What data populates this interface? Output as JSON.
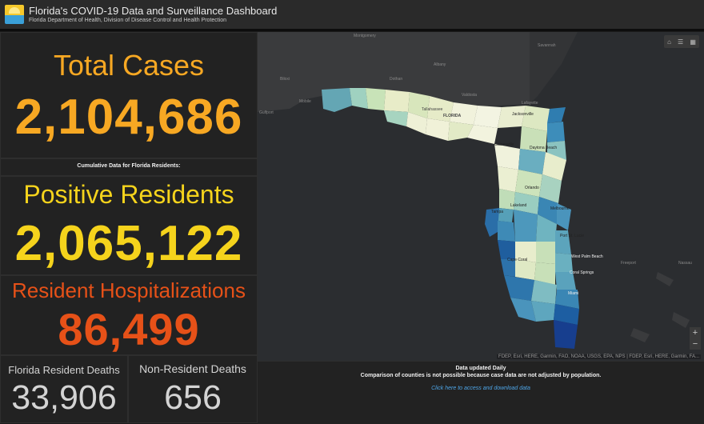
{
  "header": {
    "title": "Florida's COVID-19 Data and Surveillance Dashboard",
    "subtitle": "Florida Department of Health, Division of Disease Control and Health Protection"
  },
  "total_cases": {
    "label": "Total Cases",
    "value": "2,104,686"
  },
  "cumulative_note": "Cumulative Data for Florida Residents:",
  "positive_residents": {
    "label": "Positive Residents",
    "value": "2,065,122"
  },
  "hospitalizations": {
    "label": "Resident Hospitalizations",
    "value": "86,499"
  },
  "fl_deaths": {
    "label": "Florida Resident Deaths",
    "value": "33,906"
  },
  "nonres_deaths": {
    "label": "Non-Resident Deaths",
    "value": "656"
  },
  "map": {
    "places": [
      "Montgomery",
      "Savannah",
      "Albany",
      "Dothan",
      "Valdosta",
      "Mobile",
      "Gulfport",
      "Tallahassee",
      "FLORIDA",
      "Jacksonville",
      "Gainesville",
      "Daytona Beach",
      "Orlando",
      "Tampa",
      "Lakeland",
      "Melbourne",
      "Port St. Lucie",
      "West Palm Beach",
      "Cape Coral",
      "Miami",
      "Freeport",
      "Nassau",
      "Coral Springs",
      "Lafayette",
      "Biloxi"
    ],
    "attribution": "FDEP, Esri, HERE, Garmin, FAO, NOAA, USGS, EPA, NPS | FDEP, Esri, HERE, Garmin, FA...",
    "zoom_in": "+",
    "zoom_out": "−",
    "tools": [
      "⌂",
      "☰",
      "▦"
    ]
  },
  "footer": {
    "line1": "Data updated Daily",
    "line2": "Comparison of counties is not possible because case data are not adjusted by population.",
    "link": "Click here to access and download data"
  }
}
